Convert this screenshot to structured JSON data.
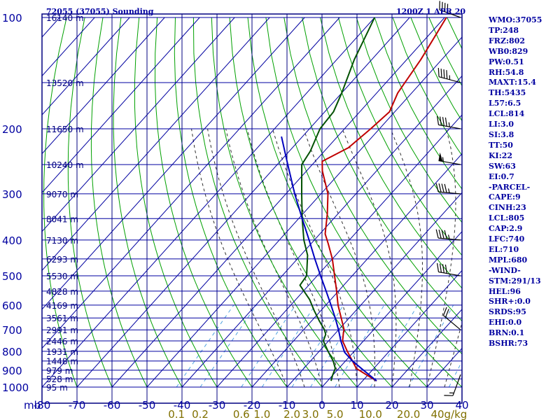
{
  "header": {
    "title": "72055 (37055) Sounding",
    "time": "1200Z  1 APR 20"
  },
  "colors": {
    "frame": "#000080",
    "isobar": "#0000a0",
    "isotherm": "#0000a0",
    "dry_adiabat": "#00a000",
    "moist_adiabat": "#303030",
    "mixing_ratio": "#4fa3e0",
    "temperature": "#c00000",
    "dewpoint": "#005000",
    "parcel": "#0000c0",
    "wind_barb": "#000000",
    "text": "#0000a0",
    "mixing_label": "#807000"
  },
  "chart_data": {
    "type": "line",
    "chart_kind": "skew-T log-P sounding diagram",
    "x_unit": "degC",
    "y_unit": "mb",
    "y_scale": "log",
    "y_axis_label": "mb",
    "ylim": [
      1000,
      100
    ],
    "xlim": [
      -80,
      0
    ],
    "pressure_levels": [
      100,
      200,
      300,
      400,
      500,
      600,
      700,
      800,
      900,
      1000
    ],
    "temperature_ticks": [
      -80,
      -70,
      -60,
      -50,
      -40,
      -30,
      -20,
      -10,
      0,
      10,
      20,
      30,
      40
    ],
    "height_labels": [
      {
        "p": 100,
        "label": "16140 m"
      },
      {
        "p": 150,
        "label": "13520 m"
      },
      {
        "p": 200,
        "label": "11650 m"
      },
      {
        "p": 250,
        "label": "10240 m"
      },
      {
        "p": 300,
        "label": "9070 m"
      },
      {
        "p": 350,
        "label": "8041 m"
      },
      {
        "p": 400,
        "label": "7130 m"
      },
      {
        "p": 450,
        "label": "6293 m"
      },
      {
        "p": 500,
        "label": "5530 m"
      },
      {
        "p": 550,
        "label": "4828 m"
      },
      {
        "p": 600,
        "label": "4169 m"
      },
      {
        "p": 650,
        "label": "3561 m"
      },
      {
        "p": 700,
        "label": "2991 m"
      },
      {
        "p": 750,
        "label": "2446 m"
      },
      {
        "p": 800,
        "label": "1931 m"
      },
      {
        "p": 850,
        "label": "1448 m"
      },
      {
        "p": 900,
        "label": "979 m"
      },
      {
        "p": 950,
        "label": "528 m"
      },
      {
        "p": 1000,
        "label": "95 m"
      }
    ],
    "mixing_ratio_labels": [
      "0.1",
      "0.2",
      "0.6",
      "1.0",
      "2.0",
      "3.0",
      "5.0",
      "10.0",
      "20.0",
      "40g/kg"
    ],
    "mixing_ratio_values": [
      0.1,
      0.2,
      0.6,
      1.0,
      2.0,
      3.0,
      5.0,
      10.0,
      20.0,
      40.0
    ],
    "series": [
      {
        "name": "temperature",
        "points": [
          {
            "p": 962,
            "t": 14.0
          },
          {
            "p": 930,
            "t": 10.0
          },
          {
            "p": 890,
            "t": 5.0
          },
          {
            "p": 850,
            "t": 2.0
          },
          {
            "p": 800,
            "t": -2.0
          },
          {
            "p": 750,
            "t": -6.0
          },
          {
            "p": 710,
            "t": -8.0
          },
          {
            "p": 700,
            "t": -8.4
          },
          {
            "p": 660,
            "t": -11.5
          },
          {
            "p": 600,
            "t": -16.5
          },
          {
            "p": 550,
            "t": -20.5
          },
          {
            "p": 500,
            "t": -25.0
          },
          {
            "p": 450,
            "t": -30.0
          },
          {
            "p": 410,
            "t": -35.0
          },
          {
            "p": 385,
            "t": -38.5
          },
          {
            "p": 340,
            "t": -43.0
          },
          {
            "p": 300,
            "t": -48.0
          },
          {
            "p": 260,
            "t": -55.5
          },
          {
            "p": 245,
            "t": -58.0
          },
          {
            "p": 225,
            "t": -54.0
          },
          {
            "p": 200,
            "t": -52.5
          },
          {
            "p": 180,
            "t": -51.5
          },
          {
            "p": 160,
            "t": -54.0
          },
          {
            "p": 130,
            "t": -56.0
          },
          {
            "p": 100,
            "t": -59.5
          }
        ]
      },
      {
        "name": "dewpoint",
        "points": [
          {
            "p": 962,
            "t": 1.0
          },
          {
            "p": 930,
            "t": 0.0
          },
          {
            "p": 890,
            "t": -1.0
          },
          {
            "p": 850,
            "t": -3.5
          },
          {
            "p": 800,
            "t": -7.5
          },
          {
            "p": 750,
            "t": -11.5
          },
          {
            "p": 720,
            "t": -12.5
          },
          {
            "p": 700,
            "t": -14.0
          },
          {
            "p": 660,
            "t": -18.0
          },
          {
            "p": 620,
            "t": -22.0
          },
          {
            "p": 580,
            "t": -26.0
          },
          {
            "p": 530,
            "t": -32.5
          },
          {
            "p": 500,
            "t": -33.0
          },
          {
            "p": 440,
            "t": -38.0
          },
          {
            "p": 400,
            "t": -43.0
          },
          {
            "p": 350,
            "t": -49.0
          },
          {
            "p": 300,
            "t": -55.5
          },
          {
            "p": 250,
            "t": -63.0
          },
          {
            "p": 230,
            "t": -64.0
          },
          {
            "p": 200,
            "t": -67.0
          },
          {
            "p": 180,
            "t": -67.5
          },
          {
            "p": 160,
            "t": -70.0
          },
          {
            "p": 130,
            "t": -75.0
          },
          {
            "p": 100,
            "t": -80.0
          }
        ]
      },
      {
        "name": "parcel",
        "points": [
          {
            "p": 962,
            "t": 14.0
          },
          {
            "p": 900,
            "t": 7.5
          },
          {
            "p": 850,
            "t": 2.0
          },
          {
            "p": 805,
            "t": -2.5
          },
          {
            "p": 750,
            "t": -6.5
          },
          {
            "p": 700,
            "t": -10.0
          },
          {
            "p": 650,
            "t": -14.0
          },
          {
            "p": 600,
            "t": -18.5
          },
          {
            "p": 550,
            "t": -23.5
          },
          {
            "p": 500,
            "t": -29.0
          },
          {
            "p": 450,
            "t": -35.0
          },
          {
            "p": 400,
            "t": -41.5
          },
          {
            "p": 350,
            "t": -49.0
          },
          {
            "p": 300,
            "t": -57.5
          },
          {
            "p": 250,
            "t": -67.0
          },
          {
            "p": 210,
            "t": -76.0
          }
        ]
      }
    ],
    "wind_barbs": [
      {
        "p": 100,
        "dir": 290,
        "spd": 45
      },
      {
        "p": 150,
        "dir": 285,
        "spd": 45
      },
      {
        "p": 200,
        "dir": 280,
        "spd": 45
      },
      {
        "p": 250,
        "dir": 280,
        "spd": 55
      },
      {
        "p": 300,
        "dir": 275,
        "spd": 45
      },
      {
        "p": 400,
        "dir": 275,
        "spd": 45
      },
      {
        "p": 500,
        "dir": 280,
        "spd": 40
      },
      {
        "p": 700,
        "dir": 310,
        "spd": 20
      },
      {
        "p": 925,
        "dir": 200,
        "spd": 15
      }
    ]
  },
  "indices": [
    "WMO:37055",
    "TP:248",
    "FRZ:802",
    "WB0:829",
    "PW:0.51",
    "RH:54.8",
    "MAXT:15.4",
    "TH:5435",
    "L57:6.5",
    "LCL:814",
    "LI:3.0",
    "SI:3.8",
    "TT:50",
    "KI:22",
    "SW:63",
    "EI:0.7",
    "-PARCEL-",
    "CAPE:9",
    "CINH:23",
    "LCL:805",
    "CAP:2.9",
    "LFC:740",
    "EL:710",
    "MPL:680",
    "-WIND-",
    "STM:291/13",
    "HEL:96",
    "SHR+:0.0",
    "SRDS:95",
    "EHI:0.0",
    "BRN:0.1",
    "BSHR:73"
  ]
}
